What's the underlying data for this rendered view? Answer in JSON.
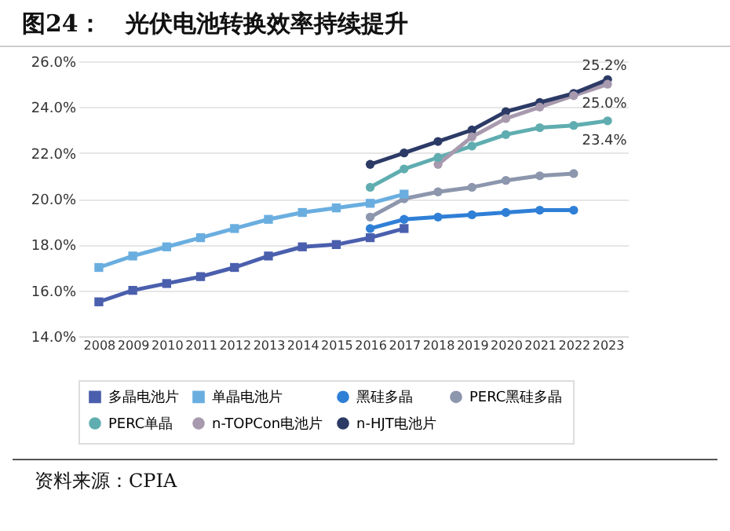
{
  "chart_data": {
    "type": "line",
    "title": "图24：　光伏电池转换效率持续提升",
    "categories": [
      "2008",
      "2009",
      "2010",
      "2011",
      "2012",
      "2013",
      "2014",
      "2015",
      "2016",
      "2017",
      "2018",
      "2019",
      "2020",
      "2021",
      "2022",
      "2023"
    ],
    "ylim": [
      14,
      26
    ],
    "yticks": [
      {
        "value": 14,
        "label": "14.0%"
      },
      {
        "value": 16,
        "label": "16.0%"
      },
      {
        "value": 18,
        "label": "18.0%"
      },
      {
        "value": 20,
        "label": "20.0%"
      },
      {
        "value": 22,
        "label": "22.0%"
      },
      {
        "value": 24,
        "label": "24.0%"
      },
      {
        "value": 26,
        "label": "26.0%"
      }
    ],
    "grid": "y",
    "legend": "bottom",
    "series": [
      {
        "name": "多晶电池片",
        "color": "#4a5fad",
        "marker": "square",
        "values": [
          15.5,
          16.0,
          16.3,
          16.6,
          17.0,
          17.5,
          17.9,
          18.0,
          18.3,
          18.7,
          null,
          null,
          null,
          null,
          null,
          null
        ]
      },
      {
        "name": "单晶电池片",
        "color": "#6aaee0",
        "marker": "square",
        "values": [
          17.0,
          17.5,
          17.9,
          18.3,
          18.7,
          19.1,
          19.4,
          19.6,
          19.8,
          20.2,
          null,
          null,
          null,
          null,
          null,
          null
        ]
      },
      {
        "name": "黑硅多晶",
        "color": "#2f7fd6",
        "marker": "circle",
        "values": [
          null,
          null,
          null,
          null,
          null,
          null,
          null,
          null,
          18.7,
          19.1,
          19.2,
          19.3,
          19.4,
          19.5,
          19.5,
          null
        ]
      },
      {
        "name": "PERC黑硅多晶",
        "color": "#8c96ad",
        "marker": "circle",
        "values": [
          null,
          null,
          null,
          null,
          null,
          null,
          null,
          null,
          19.2,
          20.0,
          20.3,
          20.5,
          20.8,
          21.0,
          21.1,
          null
        ]
      },
      {
        "name": "PERC单晶",
        "color": "#5fadb0",
        "marker": "circle",
        "values": [
          null,
          null,
          null,
          null,
          null,
          null,
          null,
          null,
          20.5,
          21.3,
          21.8,
          22.3,
          22.8,
          23.1,
          23.2,
          23.4
        ]
      },
      {
        "name": "n-TOPCon电池片",
        "color": "#a89aae",
        "marker": "circle",
        "values": [
          null,
          null,
          null,
          null,
          null,
          null,
          null,
          null,
          null,
          null,
          21.5,
          22.7,
          23.5,
          24.0,
          24.5,
          25.0
        ]
      },
      {
        "name": "n-HJT电池片",
        "color": "#2c3a66",
        "marker": "circle",
        "values": [
          null,
          null,
          null,
          null,
          null,
          null,
          null,
          null,
          21.5,
          22.0,
          22.5,
          23.0,
          23.8,
          24.2,
          24.6,
          25.2
        ]
      }
    ],
    "annotations": [
      {
        "text": "25.2%",
        "x": "2023",
        "y": 25.2
      },
      {
        "text": "25.0%",
        "x": "2023",
        "y": 25.0
      },
      {
        "text": "23.4%",
        "x": "2023",
        "y": 23.4
      },
      "资料来源：CPIA"
    ]
  }
}
